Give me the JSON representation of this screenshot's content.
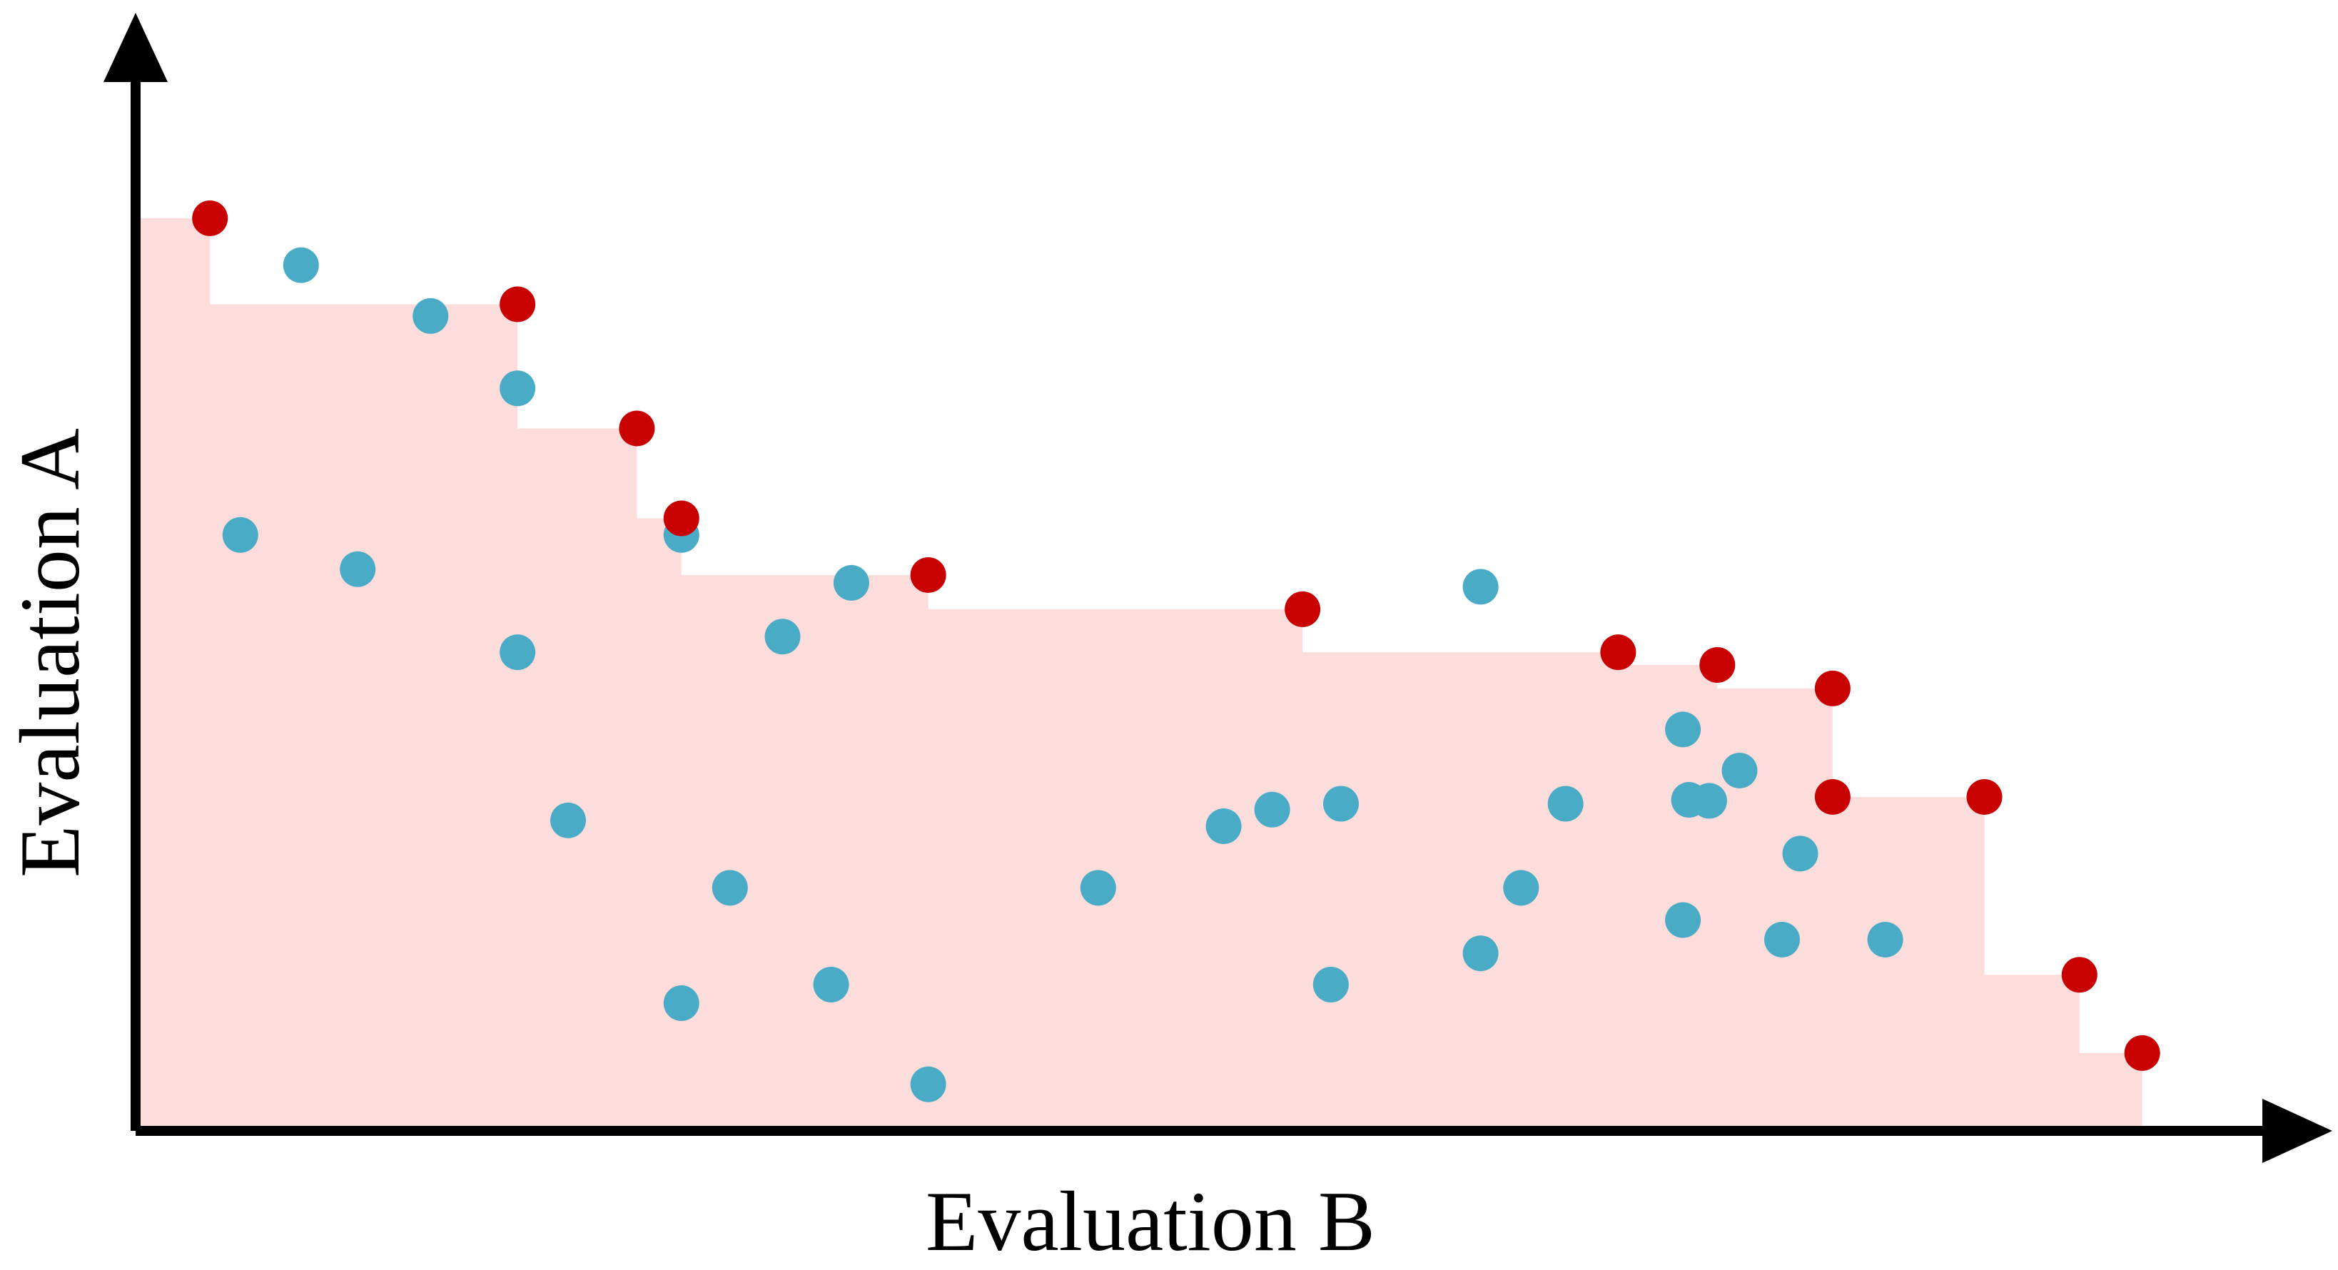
{
  "chart_data": {
    "type": "scatter",
    "title": "",
    "xlabel": "Evaluation B",
    "ylabel": "Evaluation A",
    "xlim": [
      0,
      100
    ],
    "ylim": [
      0,
      100
    ],
    "grid": false,
    "ticks": false,
    "legend": "none",
    "series": [
      {
        "role": "pareto-front",
        "color": "#c80000",
        "points": [
          {
            "x": 3.5,
            "y": 93
          },
          {
            "x": 18.7,
            "y": 84.2
          },
          {
            "x": 24.6,
            "y": 71.5
          },
          {
            "x": 26.8,
            "y": 62.3
          },
          {
            "x": 39.0,
            "y": 56.5
          },
          {
            "x": 57.5,
            "y": 53.0
          },
          {
            "x": 73.1,
            "y": 48.6
          },
          {
            "x": 78.0,
            "y": 47.3
          },
          {
            "x": 83.7,
            "y": 44.9
          },
          {
            "x": 83.7,
            "y": 33.8
          },
          {
            "x": 91.2,
            "y": 33.8
          },
          {
            "x": 95.9,
            "y": 15.6
          },
          {
            "x": 99.0,
            "y": 7.6
          }
        ]
      },
      {
        "role": "dominated",
        "color": "#4aabc6",
        "points": [
          {
            "x": 8.0,
            "y": 88.2
          },
          {
            "x": 14.4,
            "y": 83.0
          },
          {
            "x": 18.7,
            "y": 75.6
          },
          {
            "x": 5.0,
            "y": 60.6
          },
          {
            "x": 10.8,
            "y": 57.1
          },
          {
            "x": 26.8,
            "y": 60.6
          },
          {
            "x": 35.2,
            "y": 55.7
          },
          {
            "x": 31.8,
            "y": 50.2
          },
          {
            "x": 18.7,
            "y": 48.6
          },
          {
            "x": 66.3,
            "y": 55.3
          },
          {
            "x": 76.3,
            "y": 40.7
          },
          {
            "x": 79.1,
            "y": 36.5
          },
          {
            "x": 77.6,
            "y": 33.4
          },
          {
            "x": 59.4,
            "y": 33.1
          },
          {
            "x": 70.5,
            "y": 33.1
          },
          {
            "x": 76.6,
            "y": 33.5
          },
          {
            "x": 56.0,
            "y": 32.5
          },
          {
            "x": 53.6,
            "y": 30.8
          },
          {
            "x": 21.2,
            "y": 31.4
          },
          {
            "x": 29.2,
            "y": 24.5
          },
          {
            "x": 47.4,
            "y": 24.5
          },
          {
            "x": 68.3,
            "y": 24.5
          },
          {
            "x": 82.1,
            "y": 28.0
          },
          {
            "x": 76.3,
            "y": 21.2
          },
          {
            "x": 81.2,
            "y": 19.2
          },
          {
            "x": 86.3,
            "y": 19.2
          },
          {
            "x": 66.3,
            "y": 17.8
          },
          {
            "x": 58.9,
            "y": 14.6
          },
          {
            "x": 26.8,
            "y": 12.7
          },
          {
            "x": 34.2,
            "y": 14.6
          },
          {
            "x": 39.0,
            "y": 4.4
          }
        ]
      }
    ],
    "dominated_region": {
      "fill": "#fddcdc",
      "description_levels": "staircase under pareto-front"
    }
  },
  "colors": {
    "axis": "#000000",
    "pareto": "#c80000",
    "dominated": "#4aabc6",
    "region": "#fddcdc"
  }
}
